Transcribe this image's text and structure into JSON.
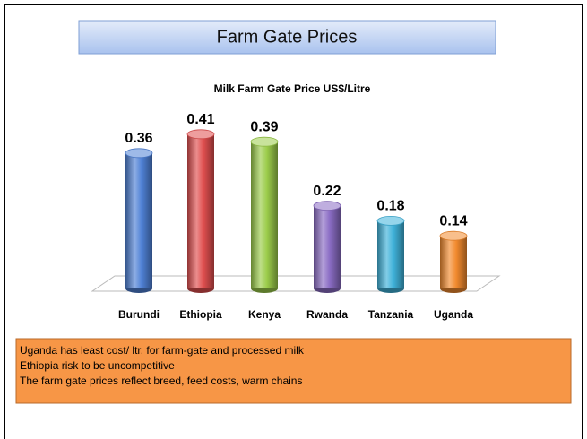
{
  "slide": {
    "title": "Farm Gate Prices",
    "notes": [
      "Uganda has least cost/ ltr.  for farm-gate and processed milk",
      "Ethiopia risk to be uncompetitive",
      "The farm gate prices reflect breed, feed costs, warm chains"
    ]
  },
  "chart_data": {
    "type": "bar",
    "title": "Milk Farm Gate Price US$/Litre",
    "categories": [
      "Burundi",
      "Ethiopia",
      "Kenya",
      "Rwanda",
      "Tanzania",
      "Uganda"
    ],
    "values": [
      0.36,
      0.41,
      0.39,
      0.22,
      0.18,
      0.14
    ],
    "colors": [
      "#4f81d6",
      "#e04f4f",
      "#9bcc4a",
      "#8a6cc4",
      "#3fb2da",
      "#f28a2e"
    ],
    "ylim": [
      0,
      0.5
    ]
  }
}
